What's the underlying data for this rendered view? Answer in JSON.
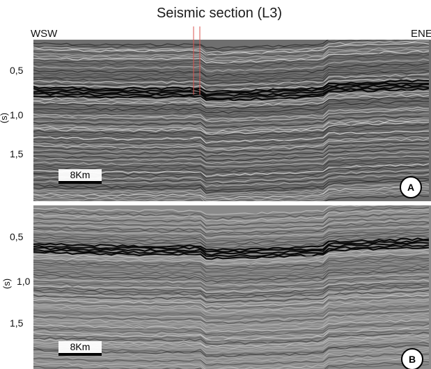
{
  "figure": {
    "title": "Seismic section (L3)",
    "direction_left": "WSW",
    "direction_right": "ENE",
    "axis_unit": "(s)",
    "panel_a": {
      "label": "A",
      "y_ticks": [
        "0,5",
        "1,0",
        "1,5"
      ],
      "scale_label": "8Km"
    },
    "panel_b": {
      "label": "B",
      "y_ticks": [
        "0,5",
        "1,0",
        "1,5"
      ],
      "scale_label": "8Km"
    }
  },
  "colors": {
    "marker": "#d9534f",
    "panel_a_background": "#777777",
    "panel_b_background": "#8a8a8a"
  }
}
